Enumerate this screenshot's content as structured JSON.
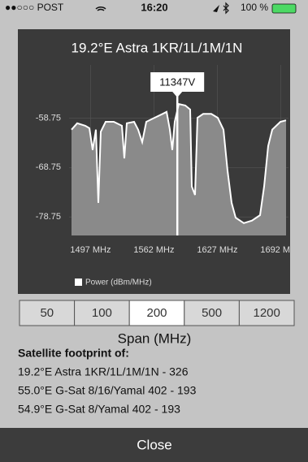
{
  "status_bar": {
    "carrier": "●●○○○ POST",
    "time": "16:20",
    "battery": "100 %"
  },
  "chart_data": {
    "type": "area",
    "title": "19.2°E Astra 1KR/1L/1M/1N",
    "x": [
      1477.5,
      1483.3,
      1491.7,
      1495.8,
      1499.2,
      1502.5,
      1505,
      1507.5,
      1512.5,
      1520.8,
      1529.2,
      1531.7,
      1534.2,
      1541.7,
      1545.8,
      1550,
      1554.2,
      1562.5,
      1570.8,
      1575,
      1578.3,
      1580.8,
      1583.3,
      1587.5,
      1594.2,
      1599.2,
      1600.8,
      1604.2,
      1606.7,
      1612.5,
      1620.8,
      1627.5,
      1633.3,
      1637.5,
      1641.7,
      1645.8,
      1654.2,
      1662.5,
      1670.8,
      1675,
      1679.2,
      1683.3,
      1691.7,
      1697.5
    ],
    "series": [
      {
        "name": "Power (dBm/MHz)",
        "color": "#ffffff",
        "fill": "#8a8a8a",
        "values": [
          -61.1,
          -59.8,
          -60.3,
          -60.8,
          -65.2,
          -61.1,
          -75.9,
          -61.5,
          -59.5,
          -59.5,
          -60.3,
          -66.9,
          -59.8,
          -59.5,
          -61.1,
          -63.6,
          -59.5,
          -58.7,
          -57.9,
          -57.5,
          -61.1,
          -65.2,
          -59.5,
          -55.9,
          -56.2,
          -57.0,
          -72.6,
          -74.3,
          -58.7,
          -57.9,
          -57.9,
          -58.7,
          -61.1,
          -69.4,
          -75.9,
          -78.9,
          -80.0,
          -79.5,
          -78.4,
          -72.6,
          -64.4,
          -61.1,
          -59.5,
          -59.2
        ]
      }
    ],
    "xlim": [
      1475,
      1700
    ],
    "ylim": [
      -82.5,
      -48
    ],
    "xticks": [
      {
        "value": 1497,
        "label": "1497 MHz"
      },
      {
        "value": 1562,
        "label": "1562 MHz"
      },
      {
        "value": 1627,
        "label": "1627 MHz"
      },
      {
        "value": 1692,
        "label": "1692 MHz"
      }
    ],
    "yticks": [
      -58.75,
      -68.75,
      -78.75
    ],
    "grid": true,
    "marker": {
      "x": 1586,
      "label": "11347V"
    }
  },
  "span_selector": {
    "options": [
      "50",
      "100",
      "200",
      "500",
      "1200"
    ],
    "selected": 2,
    "label": "Span (MHz)"
  },
  "footprint": {
    "heading": "Satellite footprint of:",
    "lines": [
      "19.2°E Astra 1KR/1L/1M/1N - 326",
      "55.0°E G-Sat 8/16/Yamal 402 - 193",
      "54.9°E G-Sat 8/Yamal 402 - 193"
    ]
  },
  "close_button": "Close"
}
